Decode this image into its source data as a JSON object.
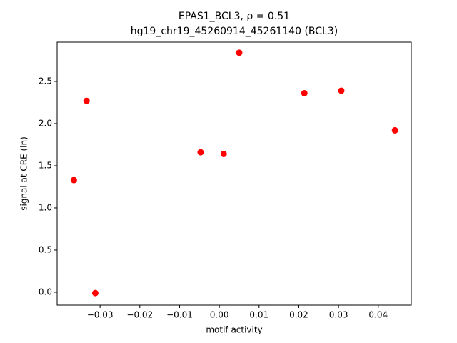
{
  "chart_data": {
    "type": "scatter",
    "title": "EPAS1_BCL3, ρ = 0.51",
    "subtitle": "hg19_chr19_45260914_45261140 (BCL3)",
    "x_label": "motif activity",
    "y_label": "signal at CRE (ln)",
    "color": "#ff0000",
    "x": [
      -0.0366,
      -0.0334,
      -0.0312,
      -0.0047,
      0.0011,
      0.005,
      0.0214,
      0.0307,
      0.0442
    ],
    "values": [
      1.33,
      2.27,
      -0.01,
      1.66,
      1.64,
      2.84,
      2.36,
      2.39,
      1.92
    ],
    "xlim": [
      -0.0408,
      0.0483
    ],
    "ylim": [
      -0.153,
      2.966
    ],
    "xticks": [
      {
        "value": -0.03,
        "label": "−0.03"
      },
      {
        "value": -0.02,
        "label": "−0.02"
      },
      {
        "value": -0.01,
        "label": "−0.01"
      },
      {
        "value": 0,
        "label": "0.00"
      },
      0.01,
      0.02,
      0.03,
      0.04
    ],
    "yticks": [
      {
        "value": 0,
        "label": "0.0"
      },
      0.5,
      {
        "value": 1,
        "label": "1.0"
      },
      1.5,
      {
        "value": 2,
        "label": "2.0"
      },
      2.5
    ],
    "grid": false
  }
}
